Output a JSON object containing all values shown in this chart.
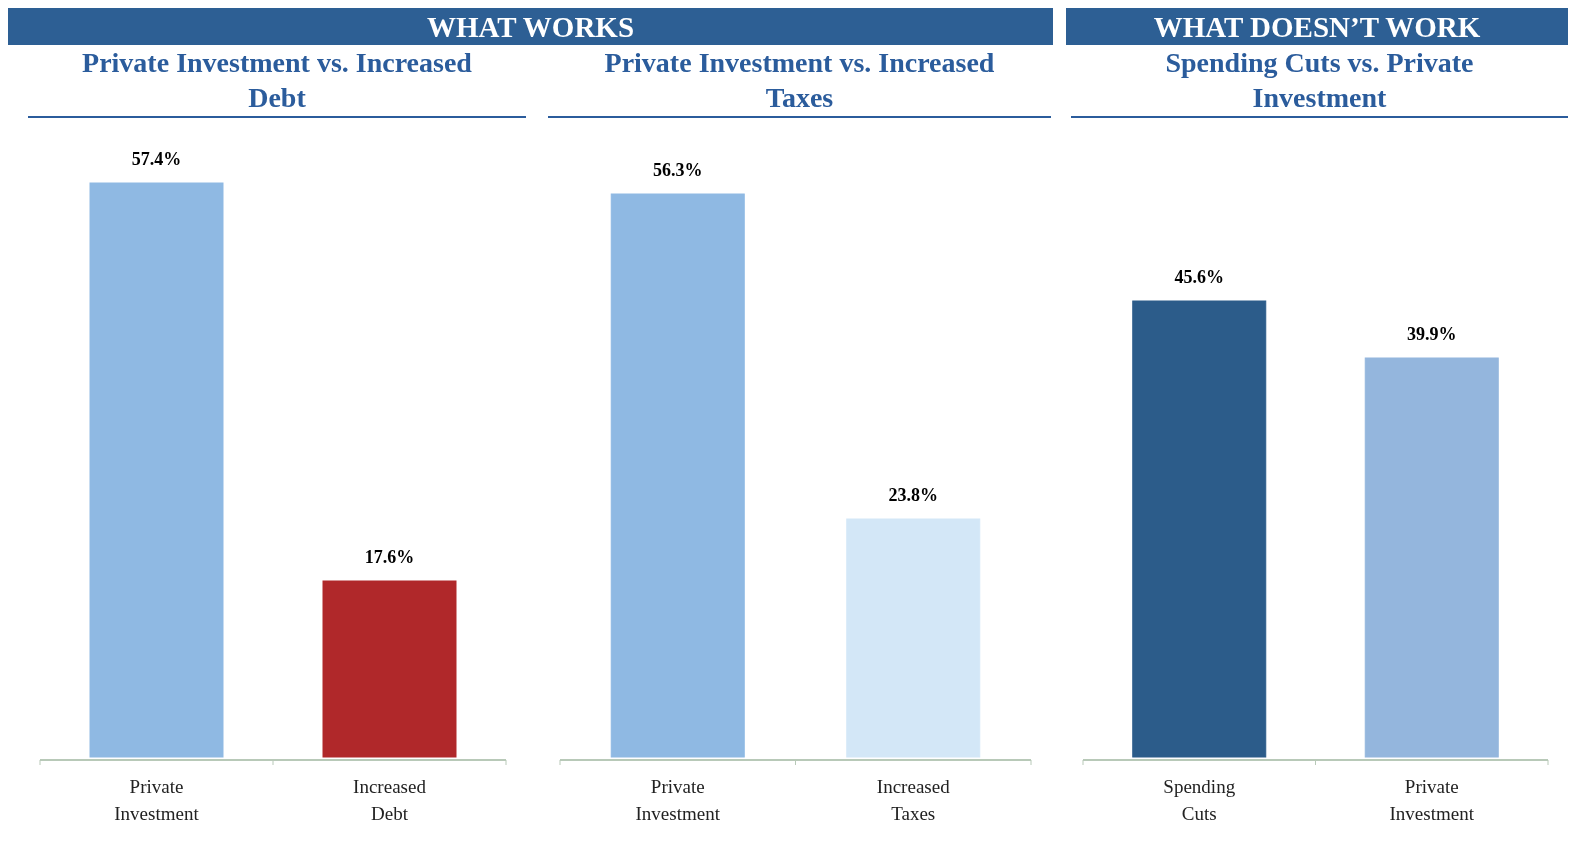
{
  "chart_data": [
    {
      "type": "bar",
      "title": "Private Investment vs. Increased Debt",
      "annotations": [
        "WHAT WORKS"
      ],
      "categories": [
        "Private Investment",
        "Increased Debt"
      ],
      "values": [
        57.4,
        17.6
      ],
      "colors": [
        "#8fb9e3",
        "#b0282a"
      ],
      "value_labels": [
        "57.4%",
        "17.6%"
      ]
    },
    {
      "type": "bar",
      "title": "Private Investment vs. Increased Taxes",
      "categories": [
        "Private Investment",
        "Increased Taxes"
      ],
      "values": [
        56.3,
        23.8
      ],
      "colors": [
        "#8fb9e3",
        "#d3e7f7"
      ],
      "value_labels": [
        "56.3%",
        "23.8%"
      ]
    },
    {
      "type": "bar",
      "title": "Spending Cuts vs. Private Investment",
      "annotations": [
        "WHAT DOESN’T WORK"
      ],
      "categories": [
        "Spending Cuts",
        "Private Investment"
      ],
      "values": [
        45.6,
        39.9
      ],
      "colors": [
        "#2c5c8a",
        "#94b6dd"
      ],
      "value_labels": [
        "45.6%",
        "39.9%"
      ]
    }
  ]
}
